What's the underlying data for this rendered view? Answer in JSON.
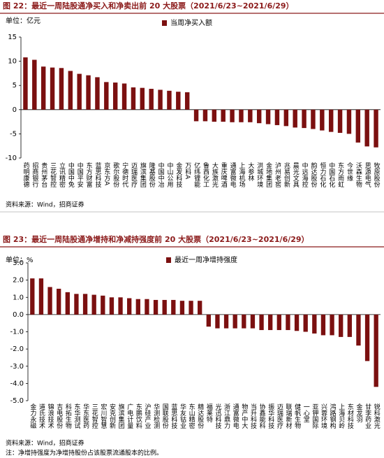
{
  "chart_data": [
    {
      "type": "bar",
      "title": "图 22：最近一周陆股通净买入和净卖出前 20 大股票（2021/6/23~2021/6/29）",
      "unit_label": "单位：亿元",
      "source": "资料来源：Wind，招商证券",
      "categories": [
        "药明康德",
        "招商银行",
        "贵州茅台",
        "三花智控",
        "立讯精密",
        "中国中免",
        "中国平安",
        "东方财富",
        "蓝思科技",
        "京东方A",
        "歌尔股份",
        "宁德时代",
        "迈瑞医疗",
        "旗滨集团",
        "隆基股份",
        "中国中冶",
        "中山公用",
        "金发科技",
        "万科A",
        "亿纬锂能",
        "鲁西化工",
        "大族激光",
        "重庆啤酒",
        "通富微电",
        "上海机场",
        "大参林",
        "洪城环境",
        "金地集团",
        "泸州老窖",
        "兆易创新",
        "晨光文具",
        "中远海控",
        "韵达股份",
        "恒力石化",
        "中国石化",
        "东方雨虹",
        "今世缘",
        "沃森生物",
        "思源电气",
        "牧原股份"
      ],
      "series": [
        {
          "name": "当周净买入额",
          "color": "#7b1010",
          "values": [
            10.8,
            10.3,
            8.9,
            8.7,
            8.6,
            8.0,
            7.4,
            7.1,
            6.7,
            5.7,
            5.6,
            5.4,
            4.6,
            4.5,
            4.3,
            4.1,
            3.9,
            3.7,
            3.6,
            -2.4,
            -2.4,
            -2.5,
            -2.5,
            -2.6,
            -2.6,
            -2.6,
            -2.8,
            -3.0,
            -3.2,
            -3.4,
            -3.7,
            -3.8,
            -4.0,
            -4.3,
            -4.6,
            -4.8,
            -5.0,
            -6.8,
            -7.6,
            -7.8
          ]
        }
      ],
      "ylim": [
        -10,
        15
      ],
      "yticks": [
        -10,
        -5,
        0,
        5,
        10,
        15
      ]
    },
    {
      "type": "bar",
      "title": "图 23：最近一周陆股通净增持和净减持强度前 20 大股票（2021/6/23~2021/6/29）",
      "unit_label": "单位：%",
      "source": "资料来源：Wind，招商证券",
      "note": "注：净增持强度为净增持股份占该股票流通股本的比例。",
      "categories": [
        "金力永磁",
        "道氏技术",
        "锦浪技术",
        "吉电股份",
        "科拓生物",
        "东华测试",
        "华东医药",
        "三花智控",
        "宏川智慧",
        "安克创新",
        "旗滨集团",
        "广电计量",
        "东鹏饮料",
        "沪硅产业",
        "华测检测",
        "国联股份",
        "蓝思科技",
        "华友钴业",
        "东山精密",
        "精达股份",
        "福莱特",
        "光迅科技",
        "浙江鼎力",
        "通富微电",
        "物产中大",
        "当升科技",
        "协鑫能科",
        "振华科技",
        "迈瑞医疗",
        "联瑞新材",
        "健帆生物",
        "一心堂",
        "亚钾国际",
        "兴蓉环境",
        "鸿路钢构",
        "上海贝岭",
        "东材科技",
        "金龙羽",
        "甘李药业",
        "锐科激光"
      ],
      "series": [
        {
          "name": "最近一周净增持强度",
          "color": "#7b1010",
          "values": [
            2.1,
            2.1,
            1.6,
            1.5,
            1.3,
            1.2,
            1.2,
            1.15,
            1.1,
            1.0,
            1.0,
            0.95,
            0.9,
            0.9,
            0.85,
            0.85,
            0.85,
            0.8,
            0.8,
            0.8,
            -0.7,
            -0.8,
            -0.8,
            -0.8,
            -0.8,
            -0.8,
            -0.9,
            -0.9,
            -0.9,
            -0.9,
            -0.95,
            -1.0,
            -1.1,
            -1.2,
            -1.2,
            -1.3,
            -1.3,
            -1.8,
            -2.7,
            -4.2
          ]
        }
      ],
      "ylim": [
        -5,
        3
      ],
      "yticks": [
        {
          "value": -5,
          "label": "-5.0"
        },
        {
          "value": -4,
          "label": "-4.0"
        },
        {
          "value": -3,
          "label": "-3.0"
        },
        {
          "value": -2,
          "label": "-2.0"
        },
        {
          "value": -1,
          "label": "-1.0"
        },
        {
          "value": 0,
          "label": "0.0"
        },
        {
          "value": 1,
          "label": "1.0"
        },
        {
          "value": 2,
          "label": "2.0"
        },
        {
          "value": 3,
          "label": "3.0"
        }
      ]
    }
  ]
}
